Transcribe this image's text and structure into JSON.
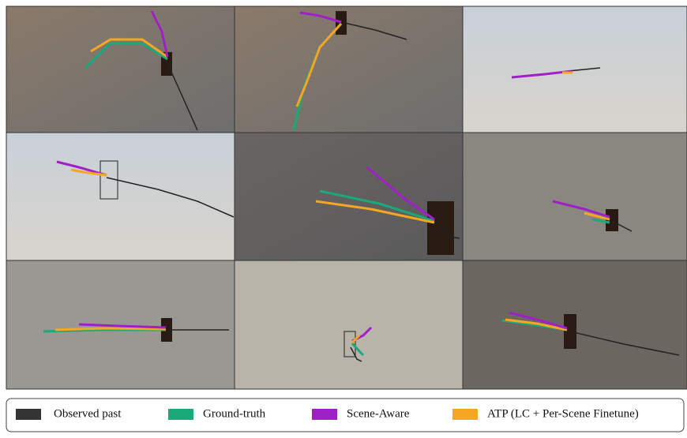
{
  "legend": {
    "items": [
      {
        "label": "Observed past",
        "color": "#333333"
      },
      {
        "label": "Ground-truth",
        "color": "#1aaa7a"
      },
      {
        "label": "Scene-Aware",
        "color": "#a020c8"
      },
      {
        "label": "ATP (LC + Per-Scene Finetune)",
        "color": "#f5a623"
      }
    ]
  }
}
